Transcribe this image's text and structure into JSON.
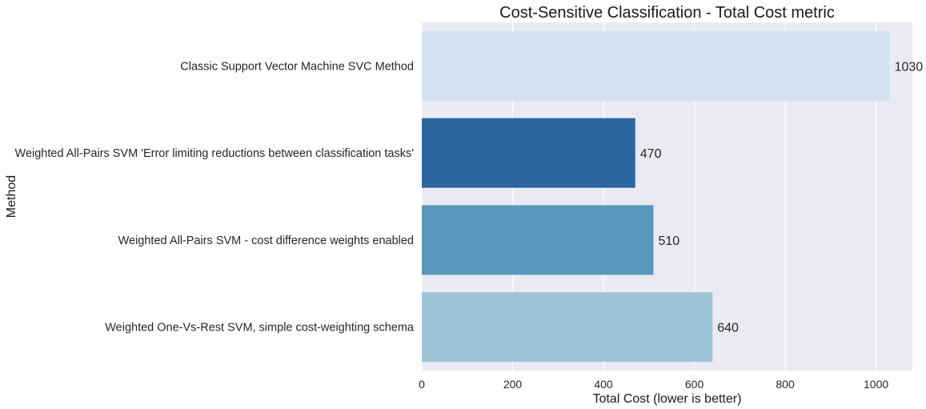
{
  "chart_data": {
    "type": "bar",
    "orientation": "horizontal",
    "title": "Cost-Sensitive Classification - Total Cost metric",
    "xlabel": "Total Cost (lower is better)",
    "ylabel": "Method",
    "xlim": [
      0,
      1080
    ],
    "xticks": [
      0,
      200,
      400,
      600,
      800,
      1000
    ],
    "grid": true,
    "categories": [
      "Classic Support Vector Machine SVC Method",
      "Weighted All-Pairs SVM 'Error limiting reductions between classification tasks'",
      "Weighted All-Pairs SVM - cost difference weights enabled",
      "Weighted One-Vs-Rest SVM, simple cost-weighting schema"
    ],
    "values": [
      1030,
      470,
      510,
      640
    ],
    "data_labels": [
      "1030",
      "470",
      "510",
      "640"
    ],
    "colors": [
      "#d3e2f0",
      "#2a67a0",
      "#5b96bd",
      "#9dc3d8"
    ],
    "background_color": "#eaeaf2",
    "grid_color": "#ffffff"
  }
}
